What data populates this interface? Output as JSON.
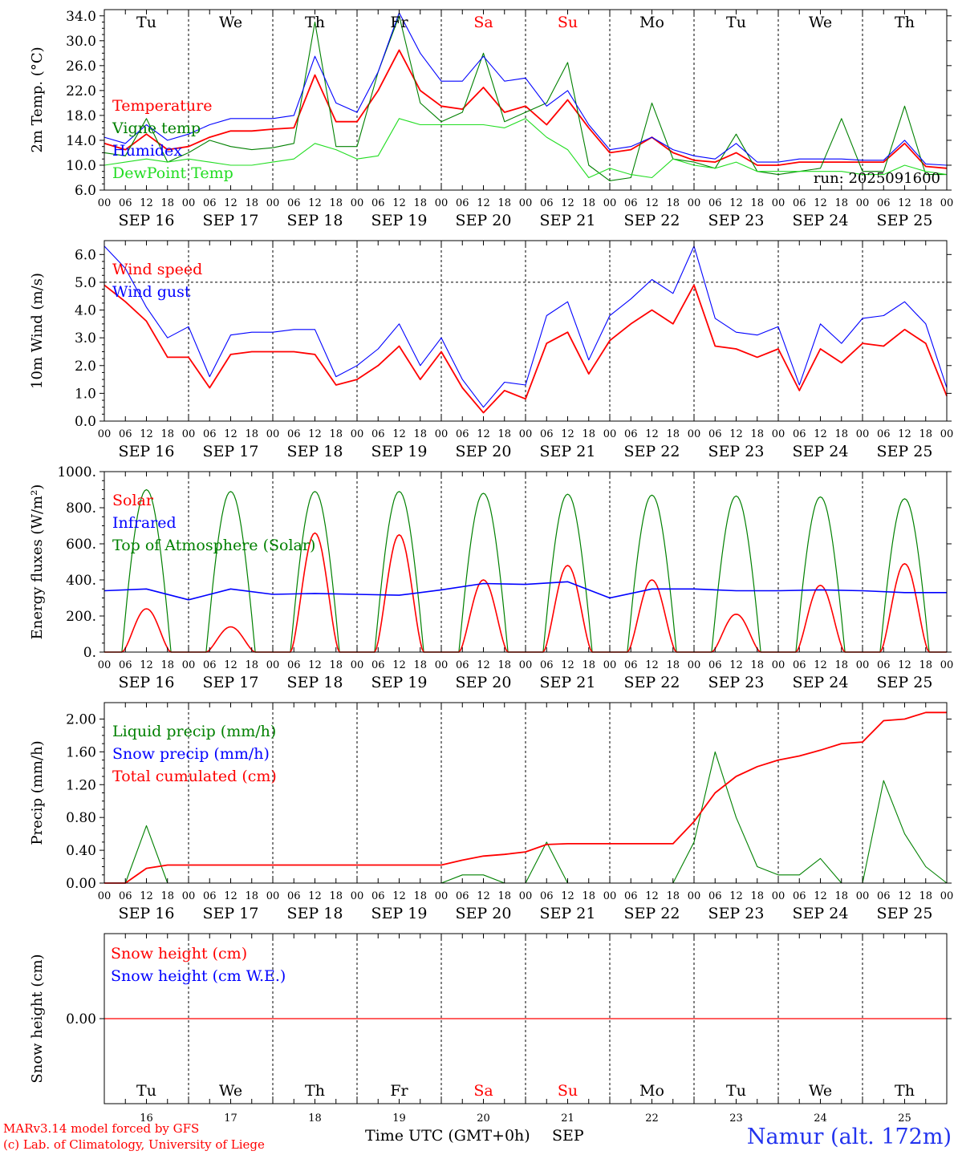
{
  "footer": {
    "model": "MARv3.14 model forced by GFS",
    "credit": "(c) Lab. of Climatology, University of Liege",
    "xlabel": "Time UTC (GMT+0h)",
    "month": "SEP",
    "station": "Namur (alt. 172m)"
  },
  "colors": {
    "red": "#ff0000",
    "blue": "#0000ff",
    "darkgreen": "#008000",
    "green": "#22dd22",
    "grid": "#333333"
  },
  "day_names": [
    "Tu",
    "We",
    "Th",
    "Fr",
    "Sa",
    "Su",
    "Mo",
    "Tu",
    "We",
    "Th"
  ],
  "day_name_colors": [
    "#000000",
    "#000000",
    "#000000",
    "#000000",
    "#ff0000",
    "#ff0000",
    "#000000",
    "#000000",
    "#000000",
    "#000000"
  ],
  "day_numbers": [
    "16",
    "17",
    "18",
    "19",
    "20",
    "21",
    "22",
    "23",
    "24",
    "25"
  ],
  "date_labels": [
    "SEP 16",
    "SEP 17",
    "SEP 18",
    "SEP 19",
    "SEP 20",
    "SEP 21",
    "SEP 22",
    "SEP 23",
    "SEP 24",
    "SEP 25"
  ],
  "hour_labels": [
    "00",
    "06",
    "12",
    "18"
  ],
  "hour_label_end": "00",
  "chart_data": [
    {
      "type": "line",
      "ylabel": "2m Temp. (°C)",
      "ylim": [
        6,
        35
      ],
      "yticks": [
        "6.0",
        "10.0",
        "14.0",
        "18.0",
        "22.0",
        "26.0",
        "30.0",
        "34.0"
      ],
      "ytick_values": [
        6,
        10,
        14,
        18,
        22,
        26,
        30,
        34
      ],
      "annotation": "run: 2025091600",
      "x_hours": [
        0,
        6,
        12,
        18,
        24,
        30,
        36,
        42,
        48,
        54,
        60,
        66,
        72,
        78,
        84,
        90,
        96,
        102,
        108,
        114,
        120,
        126,
        132,
        138,
        144,
        150,
        156,
        162,
        168,
        174,
        180,
        186,
        192,
        198,
        204,
        210,
        216,
        222,
        228,
        234,
        240
      ],
      "series": [
        {
          "name": "Temperature",
          "color": "#ff0000",
          "values": [
            13.5,
            12.5,
            15.0,
            12.5,
            13.0,
            14.5,
            15.5,
            15.5,
            15.8,
            16.0,
            24.5,
            17.0,
            17.0,
            22.0,
            28.5,
            22.0,
            19.5,
            19.0,
            22.5,
            18.5,
            19.5,
            16.5,
            20.5,
            16.0,
            12.0,
            12.5,
            14.5,
            12.0,
            10.8,
            10.5,
            12.0,
            10.0,
            10.0,
            10.5,
            10.5,
            10.5,
            10.5,
            10.5,
            13.5,
            9.8,
            9.5
          ]
        },
        {
          "name": "Vigne temp",
          "color": "#008000",
          "values": [
            12.0,
            11.5,
            17.5,
            10.5,
            12.0,
            14.0,
            13.0,
            12.5,
            12.8,
            13.5,
            33.0,
            13.0,
            13.0,
            25.0,
            34.0,
            20.0,
            17.0,
            18.5,
            28.0,
            17.0,
            18.5,
            20.0,
            26.5,
            10.0,
            7.5,
            8.0,
            20.0,
            11.0,
            10.5,
            9.5,
            15.0,
            9.0,
            8.5,
            9.0,
            9.5,
            17.5,
            9.0,
            9.0,
            19.5,
            8.5,
            8.5
          ]
        },
        {
          "name": "Humidex",
          "color": "#0000ff",
          "values": [
            14.5,
            13.5,
            16.5,
            14.0,
            15.0,
            16.5,
            17.5,
            17.5,
            17.5,
            18.0,
            27.5,
            20.0,
            18.5,
            25.0,
            34.5,
            28.0,
            23.5,
            23.5,
            27.5,
            23.5,
            24.0,
            19.5,
            22.0,
            16.5,
            12.5,
            13.0,
            14.5,
            12.5,
            11.5,
            11.0,
            13.5,
            10.5,
            10.5,
            11.0,
            11.0,
            11.0,
            10.8,
            10.8,
            14.0,
            10.2,
            10.0
          ]
        },
        {
          "name": "DewPoint Temp",
          "color": "#22dd22",
          "values": [
            10.0,
            10.5,
            11.0,
            10.5,
            11.0,
            10.5,
            10.0,
            10.0,
            10.5,
            11.0,
            13.5,
            12.5,
            11.0,
            11.5,
            17.5,
            16.5,
            16.5,
            16.5,
            16.5,
            16.0,
            17.5,
            14.5,
            12.5,
            8.0,
            9.5,
            8.5,
            8.0,
            11.0,
            10.0,
            9.5,
            10.5,
            9.0,
            9.0,
            9.0,
            9.0,
            9.0,
            8.5,
            8.5,
            10.0,
            9.0,
            8.5
          ]
        }
      ]
    },
    {
      "type": "line",
      "ylabel": "10m Wind (m/s)",
      "ylim": [
        0,
        6.5
      ],
      "yticks": [
        "0.0",
        "1.0",
        "2.0",
        "3.0",
        "4.0",
        "5.0",
        "6.0"
      ],
      "ytick_values": [
        0,
        1,
        2,
        3,
        4,
        5,
        6
      ],
      "reference_line": 5.0,
      "x_hours": [
        0,
        6,
        12,
        18,
        24,
        30,
        36,
        42,
        48,
        54,
        60,
        66,
        72,
        78,
        84,
        90,
        96,
        102,
        108,
        114,
        120,
        126,
        132,
        138,
        144,
        150,
        156,
        162,
        168,
        174,
        180,
        186,
        192,
        198,
        204,
        210,
        216,
        222,
        228,
        234,
        240
      ],
      "series": [
        {
          "name": "Wind speed",
          "color": "#ff0000",
          "values": [
            4.9,
            4.3,
            3.6,
            2.3,
            2.3,
            1.2,
            2.4,
            2.5,
            2.5,
            2.5,
            2.4,
            1.3,
            1.5,
            2.0,
            2.7,
            1.5,
            2.5,
            1.2,
            0.3,
            1.1,
            0.8,
            2.8,
            3.2,
            1.7,
            2.9,
            3.5,
            4.0,
            3.5,
            4.9,
            2.7,
            2.6,
            2.3,
            2.6,
            1.1,
            2.6,
            2.1,
            2.8,
            2.7,
            3.3,
            2.8,
            0.9
          ]
        },
        {
          "name": "Wind gust",
          "color": "#0000ff",
          "values": [
            6.3,
            5.5,
            4.1,
            3.0,
            3.4,
            1.6,
            3.1,
            3.2,
            3.2,
            3.3,
            3.3,
            1.6,
            2.0,
            2.6,
            3.5,
            2.0,
            3.0,
            1.5,
            0.5,
            1.4,
            1.3,
            3.8,
            4.3,
            2.2,
            3.8,
            4.4,
            5.1,
            4.6,
            6.3,
            3.7,
            3.2,
            3.1,
            3.4,
            1.3,
            3.5,
            2.8,
            3.7,
            3.8,
            4.3,
            3.5,
            1.2
          ]
        }
      ]
    },
    {
      "type": "line",
      "ylabel": "Energy fluxes (W/m²)",
      "ylim": [
        0,
        1000
      ],
      "yticks": [
        "0.",
        "200.",
        "400.",
        "600.",
        "800.",
        "1000."
      ],
      "ytick_values": [
        0,
        200,
        400,
        600,
        800,
        1000
      ],
      "solar_peaks": [
        240,
        140,
        660,
        650,
        400,
        480,
        400,
        210,
        370,
        490
      ],
      "toa_peaks": [
        900,
        890,
        890,
        890,
        880,
        875,
        870,
        865,
        860,
        850
      ],
      "infrared_x_hours": [
        0,
        12,
        24,
        36,
        48,
        60,
        72,
        84,
        96,
        108,
        120,
        132,
        144,
        156,
        168,
        180,
        192,
        204,
        216,
        228,
        240
      ],
      "series": [
        {
          "name": "Solar",
          "color": "#ff0000"
        },
        {
          "name": "Infrared",
          "color": "#0000ff",
          "values": [
            340,
            350,
            290,
            350,
            320,
            325,
            320,
            315,
            345,
            380,
            375,
            390,
            300,
            350,
            350,
            340,
            340,
            345,
            340,
            330,
            330
          ]
        },
        {
          "name": "Top of Atmosphere (Solar)",
          "color": "#008000"
        }
      ]
    },
    {
      "type": "line",
      "ylabel": "Precip (mm/h)",
      "ylim": [
        0,
        2.2
      ],
      "yticks": [
        "0.00",
        "0.40",
        "0.80",
        "1.20",
        "1.60",
        "2.00"
      ],
      "ytick_values": [
        0,
        0.4,
        0.8,
        1.2,
        1.6,
        2.0
      ],
      "x_hours": [
        0,
        6,
        12,
        18,
        24,
        30,
        36,
        42,
        48,
        54,
        60,
        66,
        72,
        78,
        84,
        90,
        96,
        102,
        108,
        114,
        120,
        126,
        132,
        138,
        144,
        150,
        156,
        162,
        168,
        174,
        180,
        186,
        192,
        198,
        204,
        210,
        216,
        222,
        228,
        234,
        240
      ],
      "series": [
        {
          "name": "Liquid precip (mm/h)",
          "color": "#008000",
          "values": [
            0,
            0,
            0.7,
            0,
            0,
            0,
            0,
            0,
            0,
            0,
            0,
            0,
            0,
            0,
            0,
            0,
            0,
            0.1,
            0.1,
            0,
            0,
            0.5,
            0,
            0,
            0,
            0,
            0,
            0,
            0.5,
            1.6,
            0.8,
            0.2,
            0.1,
            0.1,
            0.3,
            0,
            0,
            1.25,
            0.6,
            0.2,
            0
          ]
        },
        {
          "name": "Snow precip (mm/h)",
          "color": "#0000ff",
          "values": []
        },
        {
          "name": "Total cumulated (cm)",
          "color": "#ff0000",
          "values": [
            0,
            0,
            0.18,
            0.22,
            0.22,
            0.22,
            0.22,
            0.22,
            0.22,
            0.22,
            0.22,
            0.22,
            0.22,
            0.22,
            0.22,
            0.22,
            0.22,
            0.28,
            0.33,
            0.35,
            0.38,
            0.47,
            0.48,
            0.48,
            0.48,
            0.48,
            0.48,
            0.48,
            0.75,
            1.1,
            1.3,
            1.42,
            1.5,
            1.55,
            1.62,
            1.7,
            1.72,
            1.98,
            2.0,
            2.08,
            2.08
          ]
        }
      ]
    },
    {
      "type": "line",
      "ylabel": "Snow height (cm)",
      "ylim": [
        -1,
        1
      ],
      "yticks": [
        "0.00"
      ],
      "ytick_values": [
        0
      ],
      "series": [
        {
          "name": "Snow height (cm)",
          "color": "#ff0000",
          "values": [
            0,
            0
          ]
        },
        {
          "name": "Snow height (cm W.E.)",
          "color": "#0000ff",
          "values": []
        }
      ]
    }
  ]
}
